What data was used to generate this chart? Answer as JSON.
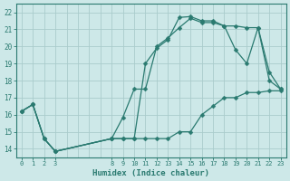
{
  "xlabel": "Humidex (Indice chaleur)",
  "background_color": "#cde8e8",
  "grid_color": "#aacccc",
  "line_color": "#2a7a70",
  "xlim": [
    -0.5,
    23.5
  ],
  "ylim": [
    13.5,
    22.5
  ],
  "xtick_positions": [
    0,
    1,
    2,
    3,
    8,
    9,
    10,
    11,
    12,
    13,
    14,
    15,
    16,
    17,
    18,
    19,
    20,
    21,
    22,
    23
  ],
  "xtick_labels": [
    "0",
    "1",
    "2",
    "3",
    "8",
    "9",
    "10",
    "11",
    "12",
    "13",
    "14",
    "15",
    "16",
    "17",
    "18",
    "19",
    "20",
    "21",
    "22",
    "23"
  ],
  "ytick_positions": [
    14,
    15,
    16,
    17,
    18,
    19,
    20,
    21,
    22
  ],
  "ytick_labels": [
    "14",
    "15",
    "16",
    "17",
    "18",
    "19",
    "20",
    "21",
    "22"
  ],
  "line1_x": [
    0,
    1,
    2,
    3,
    8,
    9,
    10,
    11,
    12,
    13,
    14,
    15,
    16,
    17,
    18,
    19,
    20,
    21,
    22,
    23
  ],
  "line1_y": [
    16.2,
    16.6,
    14.6,
    13.85,
    14.6,
    15.85,
    17.5,
    17.5,
    20.0,
    20.5,
    21.1,
    21.65,
    21.4,
    21.4,
    21.2,
    19.8,
    19.0,
    21.1,
    18.0,
    17.5
  ],
  "line2_x": [
    0,
    1,
    2,
    3,
    8,
    9,
    10,
    11,
    12,
    13,
    14,
    15,
    16,
    17,
    18,
    19,
    20,
    21,
    22,
    23
  ],
  "line2_y": [
    16.2,
    16.6,
    14.6,
    13.85,
    14.6,
    14.6,
    14.6,
    19.0,
    19.9,
    20.4,
    21.7,
    21.75,
    21.5,
    21.5,
    21.2,
    21.2,
    21.1,
    21.1,
    18.5,
    17.5
  ],
  "line3_x": [
    0,
    1,
    2,
    3,
    8,
    9,
    10,
    11,
    12,
    13,
    14,
    15,
    16,
    17,
    18,
    19,
    20,
    21,
    22,
    23
  ],
  "line3_y": [
    16.2,
    16.6,
    14.6,
    13.85,
    14.6,
    14.6,
    14.6,
    14.6,
    14.6,
    14.6,
    15.0,
    15.0,
    16.0,
    16.5,
    17.0,
    17.0,
    17.3,
    17.3,
    17.4,
    17.4
  ]
}
